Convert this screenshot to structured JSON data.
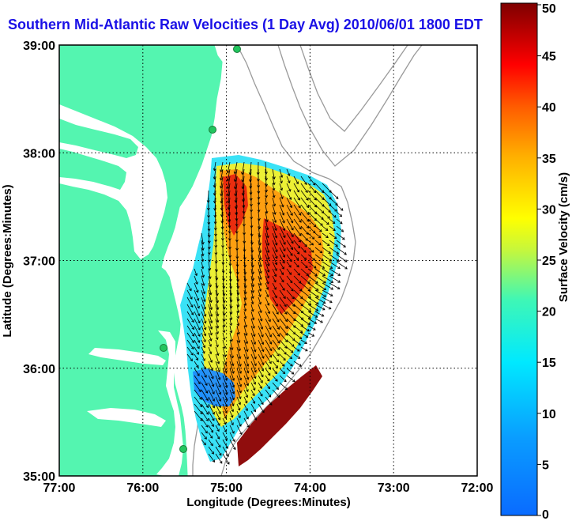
{
  "map": {
    "title": "Southern Mid-Atlantic Raw Velocities (1 Day Avg) 2010/06/01 1800 EDT",
    "x_axis": {
      "label": "Longitude (Degrees:Minutes)",
      "ticks": [
        "77:00",
        "76:00",
        "75:00",
        "74:00",
        "73:00",
        "72:00"
      ]
    },
    "y_axis": {
      "label": "Latitude (Degrees:Minutes)",
      "ticks": [
        "39:00",
        "38:00",
        "37:00",
        "36:00",
        "35:00"
      ]
    },
    "extent": {
      "lon_west": -77.0,
      "lon_east": -72.0,
      "lat_south": 35.0,
      "lat_north": 39.0
    },
    "colors": {
      "land": "#54f5b0",
      "ocean": "#ffffff",
      "bathymetry_contour": "#9a9a9a",
      "grid": "#000000",
      "vector": "#000000",
      "station": "#22c55e",
      "title_text": "#1a10e6"
    },
    "stations": [
      "station-1",
      "station-2",
      "station-3",
      "station-4"
    ]
  },
  "colorbar": {
    "label": "Surface Velocity (cm/s)",
    "min": 0,
    "max": 50,
    "ticks": [
      "50",
      "45",
      "40",
      "35",
      "30",
      "25",
      "20",
      "15",
      "10",
      "5",
      "0"
    ],
    "colormap": "jet"
  }
}
